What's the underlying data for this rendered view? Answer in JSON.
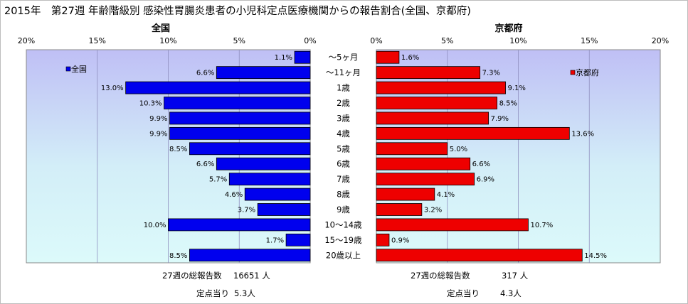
{
  "title": "2015年　第27週 年齢階級別 感染性胃腸炎患者の小児科定点医療機関からの報告割合(全国、京都府)",
  "colors": {
    "nation": "#0000ee",
    "kyoto": "#ee0000",
    "border": "#000000"
  },
  "chart_data": [
    {
      "type": "bar",
      "orientation": "horizontal-reversed",
      "title": "全国",
      "legend": "全国",
      "legend_position": "top-left",
      "xlim": [
        0,
        20
      ],
      "xticks": [
        "20%",
        "15%",
        "10%",
        "5%",
        "0%"
      ],
      "grid": true,
      "categories": [
        "～5ヶ月",
        "～11ヶ月",
        "1歳",
        "2歳",
        "3歳",
        "4歳",
        "5歳",
        "6歳",
        "7歳",
        "8歳",
        "9歳",
        "10～14歳",
        "15～19歳",
        "20歳以上"
      ],
      "values": [
        1.1,
        6.6,
        13.0,
        10.3,
        9.9,
        9.9,
        8.5,
        6.6,
        5.7,
        4.6,
        3.7,
        10.0,
        1.7,
        8.5
      ],
      "labels": [
        "1.1%",
        "6.6%",
        "13.0%",
        "10.3%",
        "9.9%",
        "9.9%",
        "8.5%",
        "6.6%",
        "5.7%",
        "4.6%",
        "3.7%",
        "10.0%",
        "1.7%",
        "8.5%"
      ]
    },
    {
      "type": "bar",
      "orientation": "horizontal",
      "title": "京都府",
      "legend": "京都府",
      "legend_position": "top-right",
      "xlim": [
        0,
        20
      ],
      "xticks": [
        "0%",
        "5%",
        "10%",
        "15%",
        "20%"
      ],
      "grid": true,
      "categories": [
        "～5ヶ月",
        "～11ヶ月",
        "1歳",
        "2歳",
        "3歳",
        "4歳",
        "5歳",
        "6歳",
        "7歳",
        "8歳",
        "9歳",
        "10～14歳",
        "15～19歳",
        "20歳以上"
      ],
      "values": [
        1.6,
        7.3,
        9.1,
        8.5,
        7.9,
        13.6,
        5.0,
        6.6,
        6.9,
        4.1,
        3.2,
        10.7,
        0.9,
        14.5
      ],
      "labels": [
        "1.6%",
        "7.3%",
        "9.1%",
        "8.5%",
        "7.9%",
        "13.6%",
        "5.0%",
        "6.6%",
        "6.9%",
        "4.1%",
        "3.2%",
        "10.7%",
        "0.9%",
        "14.5%"
      ]
    }
  ],
  "footer": {
    "nation_total_label": "27週の総報告数",
    "nation_total_value": "16651 人",
    "nation_per_label": "定点当り",
    "nation_per_value": "5.3人",
    "kyoto_total_label": "27週の総報告数",
    "kyoto_total_value": "317 人",
    "kyoto_per_label": "定点当り",
    "kyoto_per_value": "4.3人"
  }
}
